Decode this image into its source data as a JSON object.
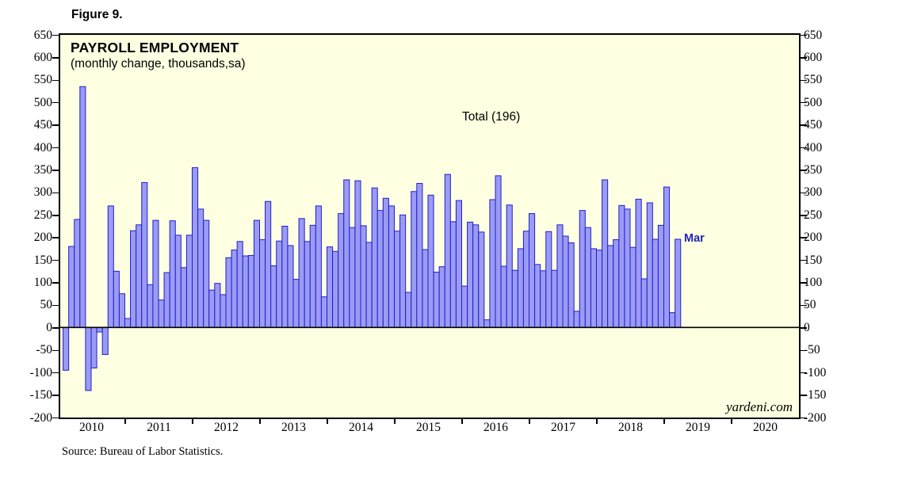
{
  "figure_label": "Figure 9.",
  "watermark": "yardeni.com",
  "source_note": "Source: Bureau of Labor Statistics.",
  "colors": {
    "plot_background": "#ffffe1",
    "bar_fill": "#9b9bf5",
    "bar_border": "#1f1fcc",
    "frame": "#000000",
    "latest_label_blue": "#2222bb"
  },
  "chart_data": {
    "type": "bar",
    "title": "PAYROLL EMPLOYMENT",
    "subtitle": "(monthly change, thousands,sa)",
    "annotation": "Total (196)",
    "latest_label": "Mar",
    "latest_value": 196,
    "frequency": "monthly",
    "start": "2010-02",
    "end": "2019-03",
    "ylim": [
      -200,
      650
    ],
    "y_tick_step": 50,
    "y_ticks": [
      650,
      600,
      550,
      500,
      450,
      400,
      350,
      300,
      250,
      200,
      150,
      100,
      50,
      0,
      -50,
      -100,
      -150,
      -200
    ],
    "x_year_labels": [
      "2010",
      "2011",
      "2012",
      "2013",
      "2014",
      "2015",
      "2016",
      "2017",
      "2018",
      "2019",
      "2020"
    ],
    "grid": false,
    "legend": "none",
    "series_by_year": [
      {
        "year": 2010,
        "first_month": "Feb",
        "values": [
          -95,
          180,
          240,
          535,
          -140,
          -90,
          -10,
          -60,
          270,
          125,
          75
        ]
      },
      {
        "year": 2011,
        "first_month": "Jan",
        "values": [
          20,
          215,
          228,
          322,
          95,
          238,
          61,
          122,
          237,
          205,
          133,
          205
        ]
      },
      {
        "year": 2012,
        "first_month": "Jan",
        "values": [
          355,
          263,
          238,
          83,
          98,
          73,
          155,
          172,
          191,
          159,
          160,
          238
        ]
      },
      {
        "year": 2013,
        "first_month": "Jan",
        "values": [
          195,
          280,
          137,
          192,
          225,
          182,
          107,
          242,
          191,
          227,
          270,
          68
        ]
      },
      {
        "year": 2014,
        "first_month": "Jan",
        "values": [
          179,
          169,
          253,
          328,
          222,
          326,
          226,
          189,
          310,
          260,
          287,
          270
        ]
      },
      {
        "year": 2015,
        "first_month": "Jan",
        "values": [
          214,
          250,
          78,
          302,
          320,
          173,
          294,
          123,
          135,
          340,
          235,
          282
        ]
      },
      {
        "year": 2016,
        "first_month": "Jan",
        "values": [
          92,
          234,
          228,
          212,
          17,
          284,
          337,
          136,
          272,
          127,
          175,
          214
        ]
      },
      {
        "year": 2017,
        "first_month": "Jan",
        "values": [
          253,
          140,
          126,
          213,
          127,
          228,
          203,
          188,
          36,
          260,
          222,
          175
        ]
      },
      {
        "year": 2018,
        "first_month": "Jan",
        "values": [
          172,
          328,
          182,
          195,
          271,
          263,
          178,
          285,
          108,
          277,
          196,
          227
        ]
      },
      {
        "year": 2019,
        "first_month": "Jan",
        "values": [
          312,
          33,
          196
        ]
      }
    ]
  }
}
